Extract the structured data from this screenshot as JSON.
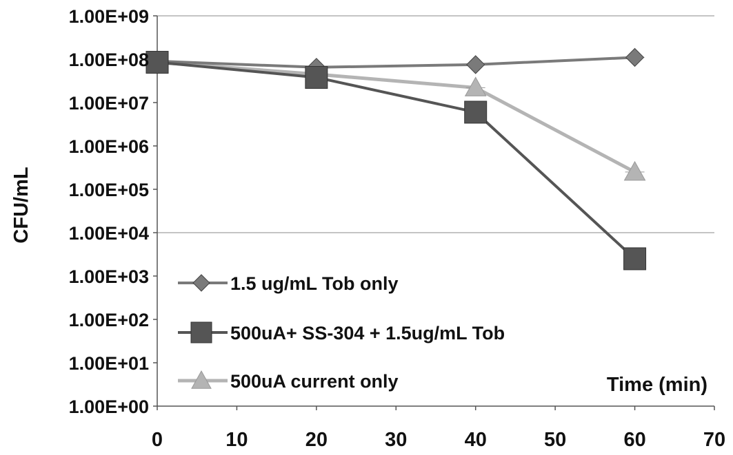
{
  "chart_data": {
    "type": "line",
    "title": "",
    "xlabel": "Time (min)",
    "ylabel": "CFU/mL",
    "y_scale": "log10",
    "xlim": [
      0,
      70
    ],
    "ylim": [
      1,
      1000000000
    ],
    "x_ticks": [
      0,
      10,
      20,
      30,
      40,
      50,
      60,
      70
    ],
    "x_tick_labels": [
      "0",
      "10",
      "20",
      "30",
      "40",
      "50",
      "60",
      "70"
    ],
    "y_ticks": [
      1,
      10,
      100,
      1000,
      10000,
      100000,
      1000000,
      10000000,
      100000000,
      1000000000
    ],
    "y_tick_labels": [
      "1.00E+00",
      "1.00E+01",
      "1.00E+02",
      "1.00E+03",
      "1.00E+04",
      "1.00E+05",
      "1.00E+06",
      "1.00E+07",
      "1.00E+08",
      "1.00E+09"
    ],
    "grid": {
      "horizontal_at": [
        10000,
        1000000000
      ],
      "vertical": false
    },
    "legend_position": "bottom-left",
    "series": [
      {
        "name": "1.5 ug/mL Tob only",
        "marker": "diamond",
        "color": "#7a7a7a",
        "x": [
          0,
          20,
          40,
          60
        ],
        "y": [
          90000000,
          65000000,
          75000000,
          110000000
        ]
      },
      {
        "name": "500uA+ SS-304 + 1.5ug/mL Tob",
        "marker": "square",
        "color": "#555555",
        "x": [
          0,
          20,
          40,
          60
        ],
        "y": [
          85000000,
          38000000,
          6000000,
          2500
        ]
      },
      {
        "name": "500uA current only",
        "marker": "triangle",
        "color": "#b4b4b4",
        "x": [
          0,
          20,
          40,
          60
        ],
        "y": [
          85000000,
          45000000,
          22000000,
          250000
        ]
      }
    ]
  }
}
